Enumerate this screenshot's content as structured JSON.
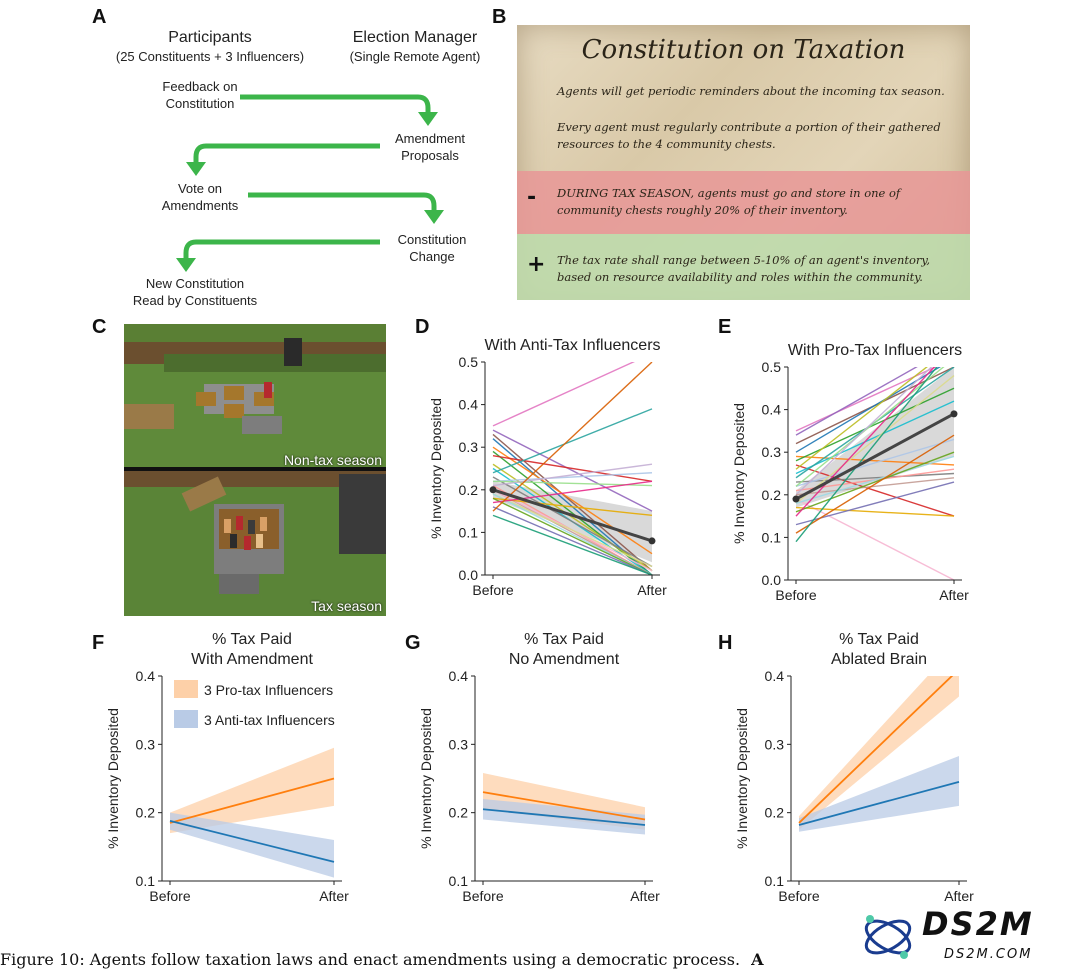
{
  "panels": {
    "a": "A",
    "b": "B",
    "c": "C",
    "d": "D",
    "e": "E",
    "f": "F",
    "g": "G",
    "h": "H"
  },
  "flow": {
    "participants_title": "Participants",
    "participants_sub": "(25 Constituents + 3 Influencers)",
    "manager_title": "Election Manager",
    "manager_sub": "(Single Remote Agent)",
    "step1": [
      "Feedback on",
      "Constitution"
    ],
    "step2": [
      "Amendment",
      "Proposals"
    ],
    "step3": [
      "Vote on",
      "Amendments"
    ],
    "step4": [
      "Constitution",
      "Change"
    ],
    "step5": [
      "New Constitution",
      "Read by Constituents"
    ],
    "arrow_color": "#3cb54a"
  },
  "constitution": {
    "title": "Constitution on Taxation",
    "line1": "Agents will get periodic reminders about the incoming tax season.",
    "line2": [
      "Every agent must regularly contribute a portion of their gathered",
      "resources to the 4 community chests."
    ],
    "minus_sign": "-",
    "minus_text": [
      "DURING TAX SEASON, agents must go and store in one of",
      "community chests roughly 20% of their inventory."
    ],
    "plus_sign": "+",
    "plus_text": [
      "The tax rate shall range between 5-10% of an agent's inventory,",
      "based on resource availability and roles within the community."
    ],
    "minus_color": "#e8a0a0",
    "plus_color": "#c2dcb0"
  },
  "game": {
    "top_label": "Non-tax season",
    "bottom_label": "Tax season"
  },
  "chart_data": [
    {
      "id": "D",
      "type": "line",
      "title": "With Anti-Tax Influencers",
      "xlabel": "",
      "ylabel": "% Inventory Deposited",
      "categories": [
        "Before",
        "After"
      ],
      "ylim": [
        0,
        0.5
      ],
      "yticks": [
        "0.0",
        "0.1",
        "0.2",
        "0.3",
        "0.4",
        "0.5"
      ],
      "grid": false,
      "mean": {
        "values": [
          0.2,
          0.08
        ],
        "ci_low": [
          0.18,
          0.03
        ],
        "ci_high": [
          0.22,
          0.15
        ]
      },
      "agents": [
        [
          0.35,
          0.52
        ],
        [
          0.34,
          0.15
        ],
        [
          0.33,
          0.01
        ],
        [
          0.32,
          0.0
        ],
        [
          0.3,
          0.05
        ],
        [
          0.29,
          0.0
        ],
        [
          0.28,
          0.22
        ],
        [
          0.26,
          0.01
        ],
        [
          0.25,
          0.0
        ],
        [
          0.24,
          0.39
        ],
        [
          0.23,
          0.02
        ],
        [
          0.22,
          0.24
        ],
        [
          0.22,
          0.21
        ],
        [
          0.21,
          0.0
        ],
        [
          0.21,
          0.26
        ],
        [
          0.2,
          0.0
        ],
        [
          0.2,
          0.01
        ],
        [
          0.19,
          0.02
        ],
        [
          0.19,
          0.0
        ],
        [
          0.18,
          0.14
        ],
        [
          0.18,
          0.0
        ],
        [
          0.17,
          0.22
        ],
        [
          0.16,
          0.0
        ],
        [
          0.15,
          0.5
        ],
        [
          0.14,
          0.0
        ]
      ],
      "colors": [
        "#e377c2",
        "#9467bd",
        "#8c564b",
        "#1f77b4",
        "#ff7f0e",
        "#2ca02c",
        "#d62728",
        "#bcbd22",
        "#17becf",
        "#2ca5a0",
        "#7f7f7f",
        "#aec7e8",
        "#98df8a",
        "#ff9896",
        "#c5b0d5",
        "#c49c94",
        "#f7b6d2",
        "#dbdb8d",
        "#9edae5",
        "#e6ab02",
        "#66a61e",
        "#e7298a",
        "#7570b3",
        "#d95f02",
        "#1b9e77"
      ]
    },
    {
      "id": "E",
      "type": "line",
      "title": "With Pro-Tax Influencers",
      "xlabel": "",
      "ylabel": "% Inventory Deposited",
      "categories": [
        "Before",
        "After"
      ],
      "ylim": [
        0,
        0.5
      ],
      "yticks": [
        "0.0",
        "0.1",
        "0.2",
        "0.3",
        "0.4",
        "0.5"
      ],
      "grid": false,
      "mean": {
        "values": [
          0.19,
          0.39
        ],
        "ci_low": [
          0.17,
          0.29
        ],
        "ci_high": [
          0.21,
          0.5
        ]
      },
      "agents": [
        [
          0.35,
          0.52
        ],
        [
          0.34,
          0.55
        ],
        [
          0.32,
          0.5
        ],
        [
          0.3,
          0.52
        ],
        [
          0.29,
          0.27
        ],
        [
          0.28,
          0.45
        ],
        [
          0.27,
          0.15
        ],
        [
          0.26,
          0.55
        ],
        [
          0.25,
          0.42
        ],
        [
          0.24,
          0.5
        ],
        [
          0.23,
          0.25
        ],
        [
          0.22,
          0.33
        ],
        [
          0.22,
          0.52
        ],
        [
          0.21,
          0.26
        ],
        [
          0.2,
          0.55
        ],
        [
          0.2,
          0.24
        ],
        [
          0.19,
          0.0
        ],
        [
          0.18,
          0.48
        ],
        [
          0.18,
          0.29
        ],
        [
          0.17,
          0.15
        ],
        [
          0.16,
          0.3
        ],
        [
          0.15,
          0.55
        ],
        [
          0.13,
          0.23
        ],
        [
          0.11,
          0.34
        ],
        [
          0.09,
          0.55
        ]
      ],
      "colors": [
        "#e377c2",
        "#9467bd",
        "#8c564b",
        "#1f77b4",
        "#ff7f0e",
        "#2ca02c",
        "#d62728",
        "#bcbd22",
        "#17becf",
        "#2ca5a0",
        "#7f7f7f",
        "#aec7e8",
        "#98df8a",
        "#ff9896",
        "#c5b0d5",
        "#c49c94",
        "#f7b6d2",
        "#dbdb8d",
        "#9edae5",
        "#e6ab02",
        "#66a61e",
        "#e7298a",
        "#7570b3",
        "#d95f02",
        "#1b9e77"
      ]
    },
    {
      "id": "F",
      "type": "line",
      "title": [
        "% Tax Paid",
        "With Amendment"
      ],
      "xlabel": "",
      "ylabel": "% Inventory Deposited",
      "categories": [
        "Before",
        "After"
      ],
      "ylim": [
        0.1,
        0.4
      ],
      "yticks": [
        "0.1",
        "0.2",
        "0.3",
        "0.4"
      ],
      "legend": "top-left",
      "series": [
        {
          "name": "3 Pro-tax Influencers",
          "color": "#ff7f0e",
          "band": "#fdd0a8",
          "values": [
            0.185,
            0.25
          ],
          "ci_low": [
            0.17,
            0.21
          ],
          "ci_high": [
            0.2,
            0.295
          ]
        },
        {
          "name": "3 Anti-tax Influencers",
          "color": "#1f77b4",
          "band": "#b9cbe6",
          "values": [
            0.188,
            0.128
          ],
          "ci_low": [
            0.175,
            0.105
          ],
          "ci_high": [
            0.2,
            0.16
          ]
        }
      ]
    },
    {
      "id": "G",
      "type": "line",
      "title": [
        "% Tax Paid",
        "No Amendment"
      ],
      "xlabel": "",
      "ylabel": "% Inventory Deposited",
      "categories": [
        "Before",
        "After"
      ],
      "ylim": [
        0.1,
        0.4
      ],
      "yticks": [
        "0.1",
        "0.2",
        "0.3",
        "0.4"
      ],
      "series": [
        {
          "color": "#ff7f0e",
          "band": "#fdd0a8",
          "values": [
            0.23,
            0.19
          ],
          "ci_low": [
            0.205,
            0.175
          ],
          "ci_high": [
            0.258,
            0.208
          ]
        },
        {
          "color": "#1f77b4",
          "band": "#b9cbe6",
          "values": [
            0.205,
            0.182
          ],
          "ci_low": [
            0.19,
            0.168
          ],
          "ci_high": [
            0.22,
            0.197
          ]
        }
      ]
    },
    {
      "id": "H",
      "type": "line",
      "title": [
        "% Tax Paid",
        "Ablated Brain"
      ],
      "xlabel": "",
      "ylabel": "% Inventory Deposited",
      "categories": [
        "Before",
        "After"
      ],
      "ylim": [
        0.1,
        0.4
      ],
      "yticks": [
        "0.1",
        "0.2",
        "0.3",
        "0.4"
      ],
      "series": [
        {
          "color": "#ff7f0e",
          "band": "#fdd0a8",
          "values": [
            0.185,
            0.41
          ],
          "ci_low": [
            0.175,
            0.37
          ],
          "ci_high": [
            0.195,
            0.45
          ]
        },
        {
          "color": "#1f77b4",
          "band": "#b9cbe6",
          "values": [
            0.182,
            0.245
          ],
          "ci_low": [
            0.172,
            0.21
          ],
          "ci_high": [
            0.192,
            0.283
          ]
        }
      ]
    }
  ],
  "caption": {
    "text": "Figure 10: Agents follow taxation laws and enact amendments using a democratic process.",
    "trailing": "A"
  },
  "watermark": {
    "logo": "DS2M",
    "url": "DS2M.COM"
  }
}
